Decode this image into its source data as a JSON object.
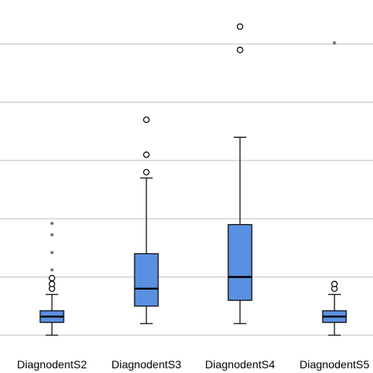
{
  "chart_data": {
    "type": "box",
    "title": "",
    "xlabel": "",
    "ylabel": "",
    "categories": [
      "DiagnodentS2",
      "DiagnodentS3",
      "DiagnodentS4",
      "DiagnodentS5"
    ],
    "category_labels_visible": [
      "DiagnodentS2",
      "DiagnodentS3",
      "DiagnodentS4",
      "DiagnodentS5"
    ],
    "ylim": [
      -0.5,
      6
    ],
    "grid": "horizontal",
    "gridlines": [
      0,
      1,
      2,
      3,
      4,
      5
    ],
    "colors": {
      "box_fill": "#5b8fe0",
      "box_stroke": "#000000",
      "grid": "#bdbdbd"
    },
    "series": [
      {
        "category": "DiagnodentS2",
        "whisker_low": 0,
        "q1": 0.22,
        "median": 0.32,
        "q3": 0.42,
        "whisker_high": 0.7,
        "outliers_circle": [
          0.8,
          0.88,
          0.98
        ],
        "outliers_star": [
          1.1,
          1.4,
          1.7,
          1.9
        ]
      },
      {
        "category": "DiagnodentS3",
        "whisker_low": 0.2,
        "q1": 0.5,
        "median": 0.8,
        "q3": 1.4,
        "whisker_high": 2.7,
        "outliers_circle": [
          2.8,
          3.1,
          3.7
        ],
        "outliers_star": []
      },
      {
        "category": "DiagnodentS4",
        "whisker_low": 0.2,
        "q1": 0.6,
        "median": 1.0,
        "q3": 1.9,
        "whisker_high": 3.4,
        "outliers_circle": [
          4.9,
          5.3
        ],
        "outliers_star": []
      },
      {
        "category": "DiagnodentS5",
        "whisker_low": 0,
        "q1": 0.22,
        "median": 0.32,
        "q3": 0.42,
        "whisker_high": 0.7,
        "outliers_circle": [
          0.8,
          0.88
        ],
        "outliers_star": [
          5.0
        ]
      }
    ]
  }
}
